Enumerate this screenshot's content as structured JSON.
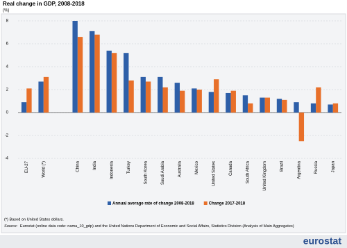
{
  "chart_data": {
    "type": "bar",
    "title": "Real change in GDP, 2008-2018",
    "unit": "(%)",
    "categories": [
      "EU-27",
      "World (*)",
      null,
      "China",
      "India",
      "Indonesia",
      "Turkey",
      "South Korea",
      "Saudi Arabia",
      "Australia",
      "Mexico",
      "United States",
      "Canada",
      "South Africa",
      "United Kingdom",
      "Brazil",
      "Argentina",
      "Russia",
      "Japan"
    ],
    "series": [
      {
        "name": "Annual average rate of change 2008-2018",
        "color": "#2e5fa8",
        "values": [
          0.9,
          2.7,
          null,
          8.0,
          7.1,
          5.4,
          5.2,
          3.1,
          3.1,
          2.6,
          2.1,
          1.8,
          1.7,
          1.5,
          1.3,
          1.2,
          0.9,
          0.8,
          0.7
        ]
      },
      {
        "name": "Change 2017-2018",
        "color": "#e8702a",
        "values": [
          2.1,
          3.1,
          null,
          6.6,
          6.8,
          5.2,
          2.8,
          2.7,
          2.2,
          1.9,
          2.0,
          2.9,
          1.9,
          0.8,
          1.3,
          1.1,
          -2.5,
          2.2,
          0.8
        ]
      }
    ],
    "ylim": [
      -4,
      8
    ],
    "yticks": [
      -4,
      -2,
      0,
      2,
      4,
      6,
      8
    ],
    "grid": true,
    "footnote": "(*) Based on United States dollars.",
    "source_label": "Source:",
    "source": "Eurostat (online data code: nama_10_gdp) and the United Nations Department of Economic and Social Affairs, Statistics Division (Analysis of Main Aggregates)",
    "logo": "eurostat"
  }
}
